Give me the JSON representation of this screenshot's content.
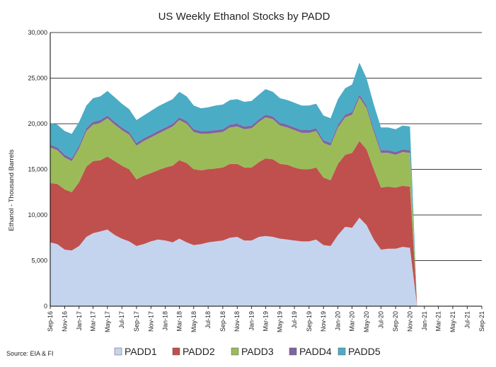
{
  "chart_data": {
    "type": "area",
    "stacked": true,
    "title": "US Weekly Ethanol Stocks by PADD",
    "ylabel": "Ethanol - Thousand Barrels",
    "xlabel": "",
    "source": "Source: EIA & FI",
    "ylim": [
      0,
      30000
    ],
    "yticks": [
      "0",
      "5,000",
      "10,000",
      "15,000",
      "20,000",
      "25,000",
      "30,000"
    ],
    "xlim": [
      "2016-09-01",
      "2021-09-01"
    ],
    "xticks": [
      "Sep-16",
      "Nov-16",
      "Jan-17",
      "Mar-17",
      "May-17",
      "Jul-17",
      "Sep-17",
      "Nov-17",
      "Jan-18",
      "Mar-18",
      "May-18",
      "Jul-18",
      "Sep-18",
      "Nov-18",
      "Jan-19",
      "Mar-19",
      "May-19",
      "Jul-19",
      "Sep-19",
      "Nov-19",
      "Jan-20",
      "Mar-20",
      "May-20",
      "Jul-20",
      "Sep-20",
      "Nov-20",
      "Jan-21",
      "Mar-21",
      "May-21",
      "Jul-21",
      "Sep-21"
    ],
    "grid": "horizontal",
    "legend_position": "bottom",
    "x": [
      "2016-09-01",
      "2016-10-01",
      "2016-11-01",
      "2016-12-01",
      "2017-01-01",
      "2017-02-01",
      "2017-03-01",
      "2017-04-01",
      "2017-05-01",
      "2017-06-01",
      "2017-07-01",
      "2017-08-01",
      "2017-09-01",
      "2017-10-01",
      "2017-11-01",
      "2017-12-01",
      "2018-01-01",
      "2018-02-01",
      "2018-03-01",
      "2018-04-01",
      "2018-05-01",
      "2018-06-01",
      "2018-07-01",
      "2018-08-01",
      "2018-09-01",
      "2018-10-01",
      "2018-11-01",
      "2018-12-01",
      "2019-01-01",
      "2019-02-01",
      "2019-03-01",
      "2019-04-01",
      "2019-05-01",
      "2019-06-01",
      "2019-07-01",
      "2019-08-01",
      "2019-09-01",
      "2019-10-01",
      "2019-11-01",
      "2019-12-01",
      "2020-01-01",
      "2020-02-01",
      "2020-03-01",
      "2020-04-01",
      "2020-05-01",
      "2020-06-01",
      "2020-07-01",
      "2020-08-01",
      "2020-09-01",
      "2020-10-01",
      "2020-11-01",
      "2020-12-01"
    ],
    "series": [
      {
        "name": "PADD1",
        "color": "#c5d4ee",
        "values": [
          7000,
          6800,
          6200,
          6100,
          6600,
          7600,
          8000,
          8200,
          8400,
          7800,
          7400,
          7100,
          6600,
          6800,
          7100,
          7300,
          7200,
          7000,
          7400,
          7000,
          6700,
          6800,
          7000,
          7100,
          7200,
          7500,
          7600,
          7200,
          7200,
          7600,
          7700,
          7600,
          7400,
          7300,
          7200,
          7100,
          7100,
          7300,
          6700,
          6600,
          7800,
          8700,
          8600,
          9700,
          8900,
          7300,
          6200,
          6300,
          6300,
          6500,
          6400,
          0
        ]
      },
      {
        "name": "PADD2",
        "color": "#c0504d",
        "values": [
          6500,
          6600,
          6600,
          6400,
          7000,
          7700,
          7900,
          7800,
          8000,
          8100,
          8000,
          7900,
          7300,
          7500,
          7500,
          7600,
          8000,
          8400,
          8600,
          8700,
          8300,
          8100,
          8000,
          8000,
          8000,
          8100,
          8000,
          8000,
          8000,
          8200,
          8500,
          8500,
          8200,
          8200,
          8000,
          7900,
          7900,
          7900,
          7400,
          7200,
          7800,
          7900,
          8200,
          8400,
          8300,
          7700,
          6800,
          6800,
          6700,
          6700,
          6700,
          0
        ]
      },
      {
        "name": "PADD3",
        "color": "#9bbb59",
        "values": [
          3900,
          3700,
          3500,
          3400,
          3700,
          3900,
          4000,
          4100,
          4200,
          4000,
          3900,
          3800,
          3700,
          3800,
          3900,
          4000,
          4100,
          4300,
          4400,
          4300,
          4100,
          4000,
          3900,
          3900,
          3900,
          4000,
          4100,
          4200,
          4300,
          4400,
          4500,
          4400,
          4200,
          4100,
          4100,
          4000,
          4000,
          4000,
          3800,
          3800,
          4000,
          4100,
          4200,
          4800,
          4500,
          4100,
          3800,
          3700,
          3600,
          3700,
          3700,
          0
        ]
      },
      {
        "name": "PADD4",
        "color": "#8064a2",
        "values": [
          300,
          300,
          300,
          300,
          300,
          300,
          300,
          300,
          300,
          300,
          300,
          300,
          300,
          300,
          300,
          300,
          300,
          300,
          300,
          300,
          300,
          300,
          300,
          300,
          300,
          300,
          300,
          300,
          300,
          300,
          300,
          300,
          300,
          300,
          300,
          300,
          300,
          300,
          300,
          300,
          300,
          300,
          300,
          300,
          300,
          300,
          300,
          300,
          300,
          300,
          300,
          0
        ]
      },
      {
        "name": "PADD5",
        "color": "#4bacc6",
        "values": [
          2400,
          2500,
          2600,
          2700,
          2600,
          2500,
          2600,
          2600,
          2700,
          2700,
          2600,
          2500,
          2500,
          2500,
          2600,
          2700,
          2700,
          2700,
          2800,
          2700,
          2600,
          2500,
          2600,
          2700,
          2700,
          2700,
          2700,
          2700,
          2700,
          2700,
          2800,
          2700,
          2700,
          2700,
          2700,
          2700,
          2700,
          2700,
          2700,
          2700,
          2800,
          2900,
          3000,
          3500,
          3000,
          2700,
          2500,
          2500,
          2500,
          2600,
          2600,
          0
        ]
      }
    ]
  }
}
